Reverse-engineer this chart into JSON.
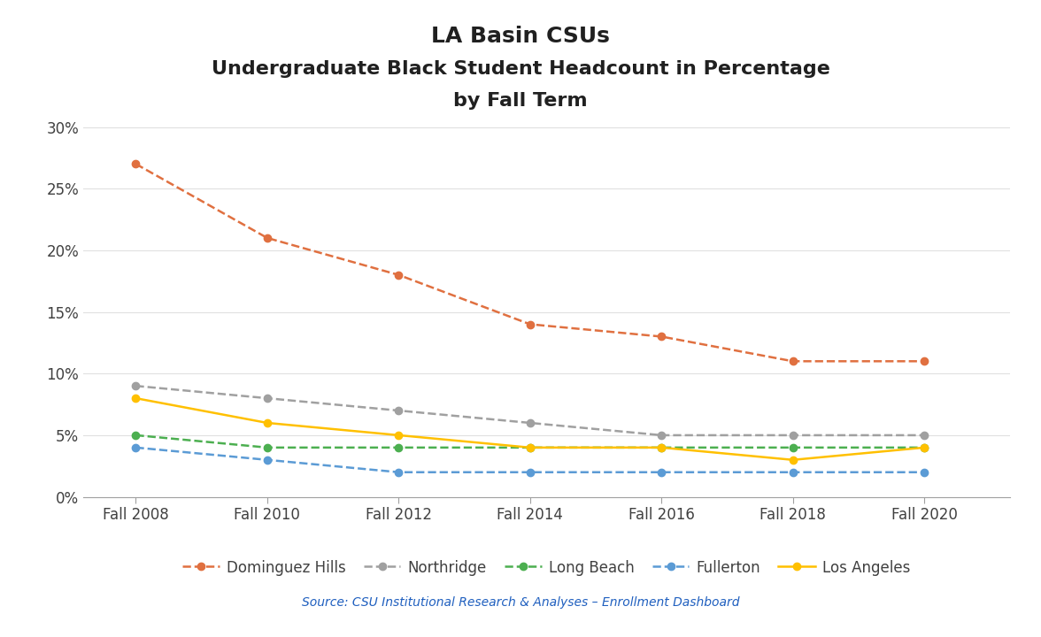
{
  "title_line1": "LA Basin CSUs",
  "title_line2": "Undergraduate Black Student Headcount in Percentage",
  "title_line3": "by Fall Term",
  "x_labels": [
    "Fall 2008",
    "Fall 2010",
    "Fall 2012",
    "Fall 2014",
    "Fall 2016",
    "Fall 2018",
    "Fall 2020"
  ],
  "x_values": [
    2008,
    2010,
    2012,
    2014,
    2016,
    2018,
    2020
  ],
  "series": {
    "Dominguez Hills": {
      "values": [
        0.27,
        0.21,
        0.18,
        0.14,
        0.13,
        0.11,
        0.11
      ],
      "color": "#E07040",
      "linestyle": "--",
      "marker": "o",
      "markersize": 6
    },
    "Northridge": {
      "values": [
        0.09,
        0.08,
        0.07,
        0.06,
        0.05,
        0.05,
        0.05
      ],
      "color": "#A0A0A0",
      "linestyle": "--",
      "marker": "o",
      "markersize": 6
    },
    "Long Beach": {
      "values": [
        0.05,
        0.04,
        0.04,
        0.04,
        0.04,
        0.04,
        0.04
      ],
      "color": "#4CAF50",
      "linestyle": "--",
      "marker": "o",
      "markersize": 6
    },
    "Fullerton": {
      "values": [
        0.04,
        0.03,
        0.02,
        0.02,
        0.02,
        0.02,
        0.02
      ],
      "color": "#5B9BD5",
      "linestyle": "--",
      "marker": "o",
      "markersize": 6
    },
    "Los Angeles": {
      "values": [
        0.08,
        0.06,
        0.05,
        0.04,
        0.04,
        0.03,
        0.04
      ],
      "color": "#FFC000",
      "linestyle": "-",
      "marker": "o",
      "markersize": 6
    }
  },
  "ylim": [
    0,
    0.31
  ],
  "yticks": [
    0,
    0.05,
    0.1,
    0.15,
    0.2,
    0.25,
    0.3
  ],
  "ytick_labels": [
    "0%",
    "5%",
    "10%",
    "15%",
    "20%",
    "25%",
    "30%"
  ],
  "source_text": "Source: CSU Institutional Research & Analyses – Enrollment Dashboard",
  "source_color": "#1F5FBF",
  "background_color": "#FFFFFF",
  "legend_order": [
    "Dominguez Hills",
    "Northridge",
    "Long Beach",
    "Fullerton",
    "Los Angeles"
  ]
}
